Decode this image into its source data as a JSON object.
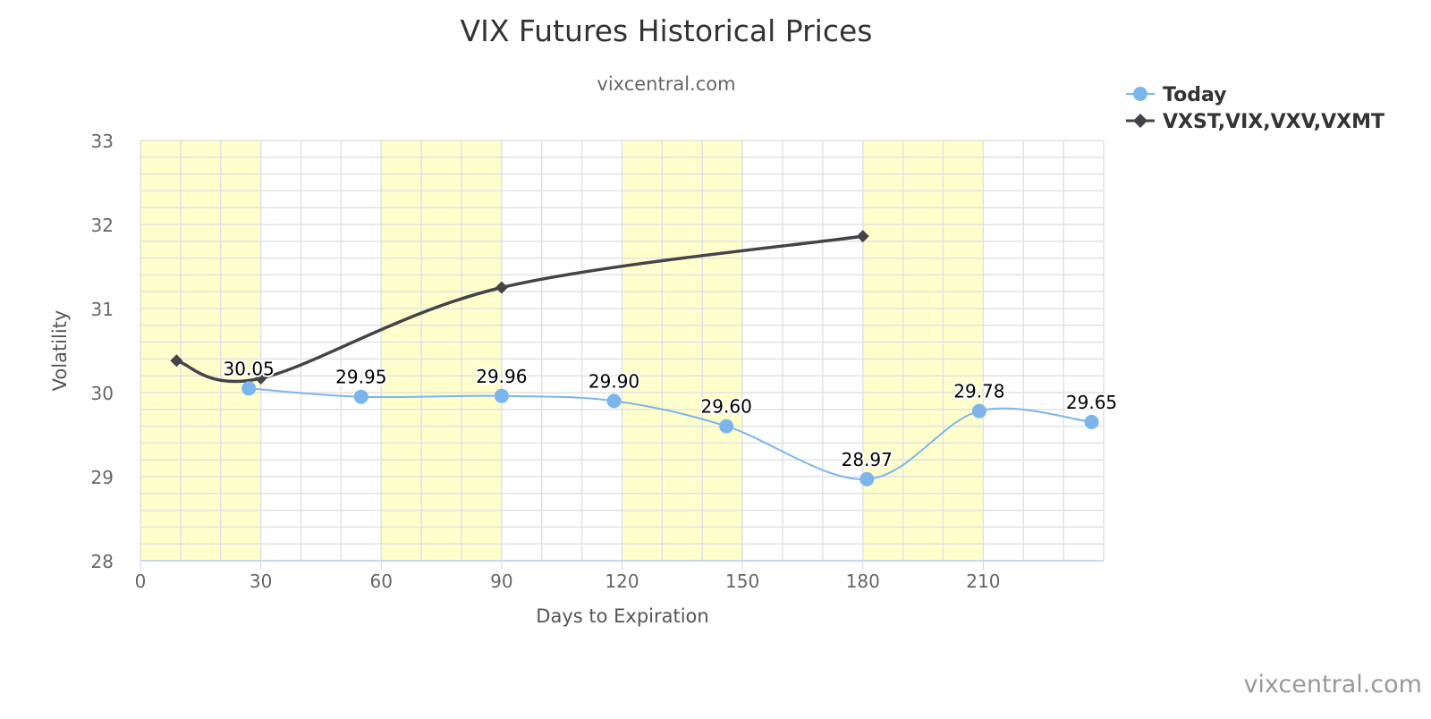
{
  "chart_data": {
    "type": "line",
    "title": "VIX Futures Historical Prices",
    "subtitle": "vixcentral.com",
    "credit": "vixcentral.com",
    "xlabel": "Days to Expiration",
    "ylabel": "Volatility",
    "xlim": [
      0,
      240
    ],
    "ylim": [
      28,
      33
    ],
    "x_ticks": [
      0,
      30,
      60,
      90,
      120,
      150,
      180,
      210
    ],
    "y_ticks": [
      28,
      29,
      30,
      31,
      32,
      33
    ],
    "grid": true,
    "bands": [
      [
        0,
        30
      ],
      [
        60,
        90
      ],
      [
        120,
        150
      ],
      [
        180,
        210
      ]
    ],
    "band_color": "#ffffcc",
    "legend_position": "top-right",
    "series": [
      {
        "name": "Today",
        "color": "#7cb5ec",
        "marker": "circle",
        "labels": true,
        "x": [
          27,
          55,
          90,
          118,
          146,
          181,
          209,
          237
        ],
        "values": [
          30.05,
          29.95,
          29.96,
          29.9,
          29.6,
          28.97,
          29.78,
          29.65
        ],
        "value_labels": [
          "30.05",
          "29.95",
          "29.96",
          "29.90",
          "29.60",
          "28.97",
          "29.78",
          "29.65"
        ]
      },
      {
        "name": "VXST,VIX,VXV,VXMT",
        "color": "#434348",
        "marker": "diamond",
        "labels": false,
        "x": [
          9,
          30,
          90,
          180
        ],
        "values": [
          30.38,
          30.17,
          31.25,
          31.86
        ]
      }
    ]
  }
}
